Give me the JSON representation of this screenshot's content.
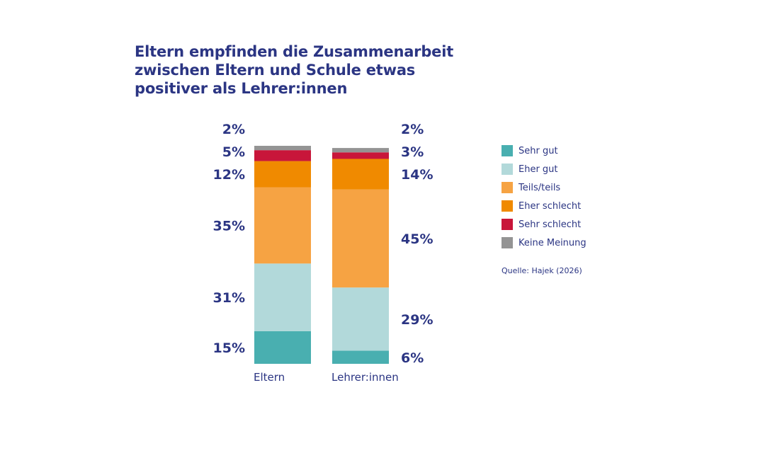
{
  "title": "Eltern empfinden die Zusammenarbeit zwischen Eltern und Schule etwas positiver als Lehrer:innen",
  "source": "Quelle: Hajek (2026)",
  "chart_data": {
    "type": "bar",
    "stacked": true,
    "categories": [
      "Eltern",
      "Lehrer:innen"
    ],
    "series": [
      {
        "name": "Sehr gut",
        "color": "#49afb0",
        "values": [
          15,
          6
        ],
        "labels": [
          "15%",
          "6%"
        ]
      },
      {
        "name": "Eher gut",
        "color": "#b2d9da",
        "values": [
          31,
          29
        ],
        "labels": [
          "31%",
          "29%"
        ]
      },
      {
        "name": "Teils/teils",
        "color": "#f6a343",
        "values": [
          35,
          45
        ],
        "labels": [
          "35%",
          "45%"
        ]
      },
      {
        "name": "Eher schlecht",
        "color": "#f08a00",
        "values": [
          12,
          14
        ],
        "labels": [
          "12%",
          "14%"
        ]
      },
      {
        "name": "Sehr schlecht",
        "color": "#c8163a",
        "values": [
          5,
          3
        ],
        "labels": [
          "5%",
          "3%"
        ]
      },
      {
        "name": "Keine Meinung",
        "color": "#949494",
        "values": [
          2,
          2
        ],
        "labels": [
          "2%",
          "2%"
        ]
      }
    ],
    "legend": "right",
    "grid": false,
    "ylim": [
      0,
      100
    ],
    "text_color": "#2b3583"
  }
}
